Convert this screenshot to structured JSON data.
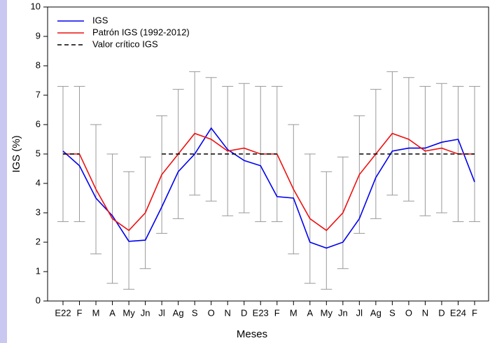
{
  "chart_data": {
    "type": "line",
    "x_label": "Meses",
    "y_label": "IGS (%)",
    "categories": [
      "E22",
      "F",
      "M",
      "A",
      "My",
      "Jn",
      "Jl",
      "Ag",
      "S",
      "O",
      "N",
      "D",
      "E23",
      "F",
      "M",
      "A",
      "My",
      "Jn",
      "Jl",
      "Ag",
      "S",
      "O",
      "N",
      "D",
      "E24",
      "F"
    ],
    "series": [
      {
        "name": "IGS",
        "color": "#0000ee",
        "dash": false,
        "values": [
          5.1,
          4.6,
          3.5,
          2.9,
          2.03,
          2.07,
          3.2,
          4.4,
          5.0,
          5.88,
          5.15,
          4.78,
          4.6,
          3.55,
          3.5,
          2.0,
          1.8,
          2.0,
          2.8,
          4.2,
          5.1,
          5.2,
          5.2,
          5.4,
          5.5,
          4.05
        ]
      },
      {
        "name": "Patrón IGS (1992-2012)",
        "color": "#ee1111",
        "dash": false,
        "values": [
          5.0,
          5.0,
          3.8,
          2.8,
          2.4,
          3.0,
          4.3,
          5.0,
          5.7,
          5.5,
          5.1,
          5.2,
          5.0,
          5.0,
          3.8,
          2.8,
          2.4,
          3.0,
          4.3,
          5.0,
          5.7,
          5.5,
          5.1,
          5.2,
          5.0,
          5.0
        ]
      },
      {
        "name": "Valor crítico IGS",
        "color": "#000000",
        "dash": true,
        "values": [
          5,
          5,
          null,
          null,
          null,
          null,
          5,
          5,
          5,
          5,
          5,
          5,
          5,
          5,
          null,
          null,
          null,
          null,
          5,
          5,
          5,
          5,
          5,
          5,
          5,
          5
        ]
      }
    ],
    "error_bars": {
      "color": "#999999",
      "low": [
        2.7,
        2.7,
        1.6,
        0.6,
        0.4,
        1.1,
        2.3,
        2.8,
        3.6,
        3.4,
        2.9,
        3.0,
        2.7,
        2.7,
        1.6,
        0.6,
        0.4,
        1.1,
        2.3,
        2.8,
        3.6,
        3.4,
        2.9,
        3.0,
        2.7,
        2.7
      ],
      "high": [
        7.3,
        7.3,
        6.0,
        5.0,
        4.4,
        4.9,
        6.3,
        7.2,
        7.8,
        7.6,
        7.3,
        7.4,
        7.3,
        7.3,
        6.0,
        5.0,
        4.4,
        4.9,
        6.3,
        7.2,
        7.8,
        7.6,
        7.3,
        7.4,
        7.3,
        7.3
      ]
    },
    "ylim": [
      0,
      10
    ],
    "yticks": [
      0,
      1,
      2,
      3,
      4,
      5,
      6,
      7,
      8,
      9,
      10
    ],
    "grid": false,
    "legend": "top-left"
  }
}
